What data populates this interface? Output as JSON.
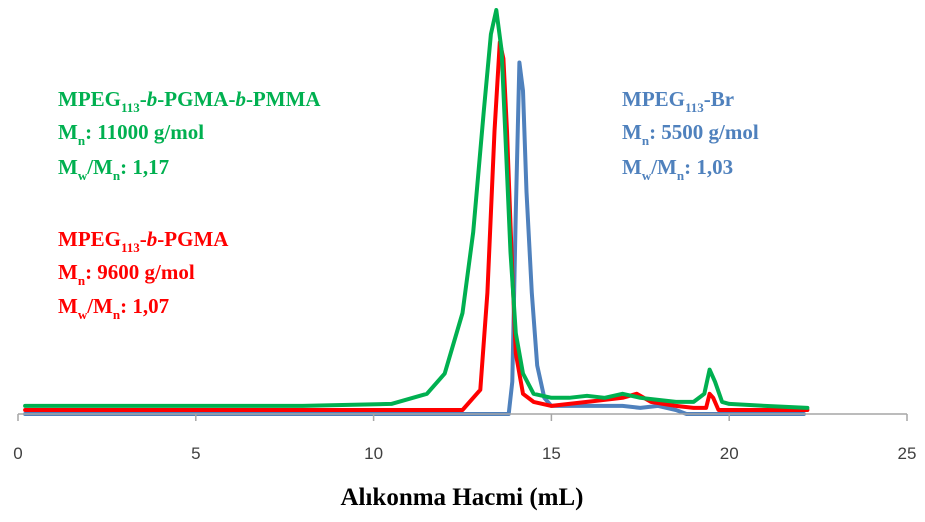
{
  "chart_data": {
    "type": "line",
    "title": "",
    "xlabel": "Alıkonma Hacmi (mL)",
    "ylabel": "",
    "xlim": [
      0,
      25
    ],
    "ylim": [
      0,
      1.0
    ],
    "x_ticks": [
      0,
      5,
      10,
      15,
      20,
      25
    ],
    "x_tick_labels": [
      "0",
      "5",
      "10",
      "15",
      "20",
      "25"
    ],
    "grid": false,
    "legend": "none",
    "series": [
      {
        "key": "mpeg_br",
        "color": "#4f81bd",
        "x": [
          0.2,
          13.8,
          13.9,
          14.0,
          14.1,
          14.2,
          14.3,
          14.45,
          14.6,
          14.8,
          15.0,
          15.5,
          16.0,
          16.5,
          17.0,
          17.5,
          18.0,
          18.5,
          18.8,
          19.0,
          19.2,
          19.4,
          19.6,
          19.8,
          20.0,
          21.0,
          22.1
        ],
        "y": [
          0.0,
          0.0,
          0.08,
          0.5,
          0.87,
          0.8,
          0.55,
          0.3,
          0.12,
          0.04,
          0.02,
          0.02,
          0.02,
          0.02,
          0.02,
          0.015,
          0.02,
          0.01,
          0.0,
          0.0,
          0.0,
          0.0,
          0.0,
          0.0,
          0.0,
          0.0,
          0.0
        ]
      },
      {
        "key": "mpeg_pgma",
        "color": "#ff0000",
        "x": [
          0.2,
          10.0,
          12.5,
          13.0,
          13.2,
          13.4,
          13.55,
          13.65,
          13.75,
          13.9,
          14.0,
          14.2,
          14.5,
          15.0,
          16.0,
          17.0,
          17.4,
          17.8,
          18.5,
          19.0,
          19.35,
          19.45,
          19.55,
          19.7,
          20.0,
          21.0,
          22.2
        ],
        "y": [
          0.01,
          0.01,
          0.01,
          0.06,
          0.3,
          0.7,
          0.92,
          0.88,
          0.7,
          0.35,
          0.15,
          0.05,
          0.03,
          0.02,
          0.03,
          0.04,
          0.05,
          0.03,
          0.02,
          0.015,
          0.015,
          0.05,
          0.04,
          0.01,
          0.01,
          0.01,
          0.01
        ]
      },
      {
        "key": "mpeg_pgma_pmma",
        "color": "#00b050",
        "x": [
          0.2,
          8.0,
          10.5,
          11.5,
          12.0,
          12.5,
          12.8,
          13.1,
          13.3,
          13.45,
          13.6,
          13.7,
          13.85,
          14.0,
          14.2,
          14.5,
          15.0,
          15.5,
          16.0,
          16.5,
          17.0,
          17.5,
          18.0,
          18.5,
          19.0,
          19.3,
          19.45,
          19.6,
          19.8,
          20.0,
          21.0,
          22.2
        ],
        "y": [
          0.02,
          0.02,
          0.025,
          0.05,
          0.1,
          0.25,
          0.45,
          0.75,
          0.94,
          1.0,
          0.9,
          0.7,
          0.4,
          0.2,
          0.1,
          0.05,
          0.04,
          0.04,
          0.045,
          0.04,
          0.05,
          0.04,
          0.035,
          0.03,
          0.03,
          0.05,
          0.11,
          0.08,
          0.03,
          0.025,
          0.02,
          0.015
        ]
      }
    ],
    "annotations": {
      "green": {
        "color": "#00b050",
        "l1_a": "MPEG",
        "l1_sub": "113",
        "l1_b": "-",
        "l1_c": "b",
        "l1_d": "-PGMA-",
        "l1_e": "b",
        "l1_f": "-PMMA",
        "l2_a": "M",
        "l2_sub": "n",
        "l2_b": ": 11000 g/mol",
        "l3_a": "M",
        "l3_sub1": "w",
        "l3_b": "/M",
        "l3_sub2": "n",
        "l3_c": ": 1,17"
      },
      "red": {
        "color": "#ff0000",
        "l1_a": "MPEG",
        "l1_sub": "113",
        "l1_b": "-",
        "l1_c": "b",
        "l1_d": "-PGMA",
        "l2_a": "M",
        "l2_sub": "n",
        "l2_b": ": 9600 g/mol",
        "l3_a": "M",
        "l3_sub1": "w",
        "l3_b": "/M",
        "l3_sub2": "n",
        "l3_c": ": 1,07"
      },
      "blue": {
        "color": "#4f81bd",
        "l1_a": "MPEG",
        "l1_sub": "113",
        "l1_b": "-Br",
        "l2_a": "M",
        "l2_sub": "n",
        "l2_b": ": 5500 g/mol",
        "l3_a": "M",
        "l3_sub1": "w",
        "l3_b": "/M",
        "l3_sub2": "n",
        "l3_c": ": 1,03"
      }
    },
    "axis_color": "#a6a6a6"
  }
}
